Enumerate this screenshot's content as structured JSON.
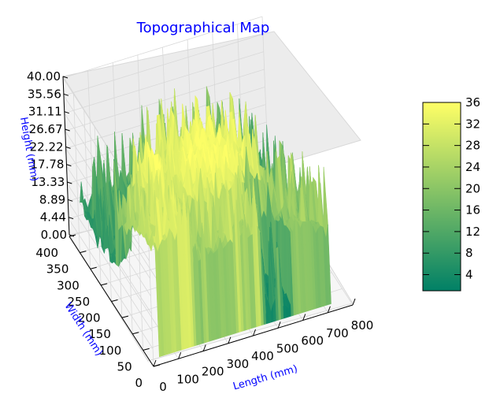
{
  "chart_data": {
    "type": "surface3d",
    "title": "Topographical Map",
    "xlabel": "Length (mm)",
    "ylabel": "Width (mm)",
    "zlabel": "Height (mm)",
    "x_ticks": [
      "0",
      "100",
      "200",
      "300",
      "400",
      "500",
      "600",
      "700",
      "800"
    ],
    "y_ticks": [
      "0",
      "50",
      "100",
      "150",
      "200",
      "250",
      "300",
      "350",
      "400"
    ],
    "z_ticks": [
      "0.00",
      "4.44",
      "8.89",
      "13.33",
      "17.78",
      "22.22",
      "26.67",
      "31.11",
      "35.56",
      "40.00"
    ],
    "xlim": [
      0,
      800
    ],
    "ylim": [
      0,
      400
    ],
    "zlim": [
      0,
      40
    ],
    "colormap": "summer",
    "colormap_colors": [
      "#008066",
      "#ffff66"
    ],
    "colorbar": {
      "ticks": [
        "4",
        "8",
        "12",
        "16",
        "20",
        "24",
        "28",
        "32",
        "36"
      ],
      "range": [
        1,
        36
      ]
    },
    "grid": true
  }
}
